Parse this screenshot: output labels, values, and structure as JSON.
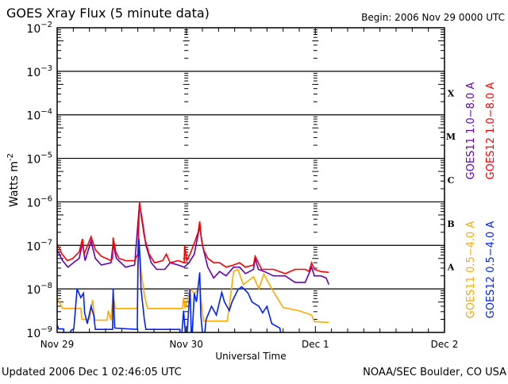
{
  "chart_data": {
    "type": "line",
    "title": "GOES Xray Flux (5 minute data)",
    "begin_label": "Begin:  2006 Nov 29 0000 UTC",
    "xlabel": "Universal Time",
    "ylabel": "Watts m",
    "ylabel_sup": "-2",
    "x_units": "hours since 2006 Nov 29 0000 UTC",
    "xlim": [
      0,
      72
    ],
    "ylim_log10": [
      -9,
      -2
    ],
    "y_scale": "log",
    "grid": true,
    "x_ticks": [
      {
        "value": 0,
        "label": "Nov 29"
      },
      {
        "value": 24,
        "label": "Nov 30"
      },
      {
        "value": 48,
        "label": "Dec 1"
      },
      {
        "value": 72,
        "label": "Dec 2"
      }
    ],
    "y_ticks": [
      {
        "exp": -2,
        "base": "10",
        "sup": "−2"
      },
      {
        "exp": -3,
        "base": "10",
        "sup": "−3"
      },
      {
        "exp": -4,
        "base": "10",
        "sup": "−4"
      },
      {
        "exp": -5,
        "base": "10",
        "sup": "−5"
      },
      {
        "exp": -6,
        "base": "10",
        "sup": "−6"
      },
      {
        "exp": -7,
        "base": "10",
        "sup": "−7"
      },
      {
        "exp": -8,
        "base": "10",
        "sup": "−8"
      },
      {
        "exp": -9,
        "base": "10",
        "sup": "−9"
      }
    ],
    "flare_classes": [
      {
        "label": "X",
        "exp": -4
      },
      {
        "label": "M",
        "exp": -5
      },
      {
        "label": "C",
        "exp": -6
      },
      {
        "label": "B",
        "exp": -7
      },
      {
        "label": "A",
        "exp": -8
      }
    ],
    "series": [
      {
        "name": "GOES11 1.0−8.0 A",
        "color": "#6600bb",
        "legend_pos": "upper-left",
        "points_log10": [
          [
            0,
            -7.1
          ],
          [
            1,
            -7.35
          ],
          [
            2,
            -7.5
          ],
          [
            3,
            -7.4
          ],
          [
            4.1,
            -7.3
          ],
          [
            4.7,
            -6.95
          ],
          [
            5.2,
            -7.35
          ],
          [
            6.3,
            -6.9
          ],
          [
            7.1,
            -7.3
          ],
          [
            8.2,
            -7.45
          ],
          [
            10,
            -7.4
          ],
          [
            10.4,
            -6.95
          ],
          [
            11,
            -7.3
          ],
          [
            12.7,
            -7.5
          ],
          [
            14.4,
            -7.45
          ],
          [
            15.3,
            -6.05
          ],
          [
            15.8,
            -6.4
          ],
          [
            16.5,
            -7.0
          ],
          [
            17.5,
            -7.4
          ],
          [
            18.5,
            -7.55
          ],
          [
            20,
            -7.55
          ],
          [
            21,
            -7.4
          ],
          [
            22.5,
            -7.45
          ],
          [
            23.6,
            -7.5
          ],
          [
            24.5,
            -7.4
          ],
          [
            25.5,
            -7.2
          ],
          [
            26.5,
            -6.55
          ],
          [
            27,
            -7.0
          ],
          [
            28,
            -7.5
          ],
          [
            29.1,
            -7.75
          ],
          [
            30.2,
            -7.6
          ],
          [
            31.4,
            -7.7
          ],
          [
            32.8,
            -7.5
          ],
          [
            33.9,
            -7.5
          ],
          [
            35,
            -7.65
          ],
          [
            36.5,
            -7.55
          ],
          [
            36.8,
            -7.3
          ],
          [
            37.4,
            -7.55
          ],
          [
            38.5,
            -7.6
          ],
          [
            40.2,
            -7.7
          ],
          [
            42.4,
            -7.7
          ],
          [
            44.2,
            -7.85
          ],
          [
            46.1,
            -7.85
          ],
          [
            47.3,
            -7.5
          ],
          [
            47.8,
            -7.7
          ],
          [
            49,
            -7.7
          ],
          [
            50,
            -7.75
          ],
          [
            50.5,
            -7.9
          ]
        ]
      },
      {
        "name": "GOES12 1.0−8.0 A",
        "color": "#ff0000",
        "legend_pos": "upper-right",
        "points_log10": [
          [
            0,
            -6.97
          ],
          [
            0.9,
            -7.2
          ],
          [
            1.9,
            -7.35
          ],
          [
            2.9,
            -7.3
          ],
          [
            4.1,
            -7.15
          ],
          [
            4.7,
            -6.85
          ],
          [
            5.0,
            -7.2
          ],
          [
            6.3,
            -6.8
          ],
          [
            7.1,
            -7.1
          ],
          [
            8.2,
            -7.25
          ],
          [
            10.0,
            -7.35
          ],
          [
            10.3,
            -7.3
          ],
          [
            10.4,
            -6.82
          ],
          [
            10.9,
            -7.15
          ],
          [
            11.5,
            -7.3
          ],
          [
            12.7,
            -7.35
          ],
          [
            14.4,
            -7.35
          ],
          [
            15.0,
            -7.2
          ],
          [
            15.3,
            -6.0
          ],
          [
            15.6,
            -6.3
          ],
          [
            16.2,
            -6.8
          ],
          [
            17.1,
            -7.2
          ],
          [
            18.1,
            -7.4
          ],
          [
            19.6,
            -7.35
          ],
          [
            20.3,
            -7.2
          ],
          [
            21.0,
            -7.4
          ],
          [
            22.5,
            -7.35
          ],
          [
            23.6,
            -7.4
          ],
          [
            23.7,
            -7.0
          ],
          [
            24.1,
            -7.35
          ],
          [
            24.7,
            -7.2
          ],
          [
            25.5,
            -6.95
          ],
          [
            26.2,
            -6.7
          ],
          [
            26.5,
            -6.45
          ],
          [
            26.8,
            -6.85
          ],
          [
            27.2,
            -7.1
          ],
          [
            28.0,
            -7.3
          ],
          [
            29.1,
            -7.4
          ],
          [
            30.2,
            -7.4
          ],
          [
            31.4,
            -7.5
          ],
          [
            32.8,
            -7.45
          ],
          [
            33.9,
            -7.4
          ],
          [
            35.0,
            -7.5
          ],
          [
            36.5,
            -7.45
          ],
          [
            36.8,
            -7.25
          ],
          [
            37.2,
            -7.35
          ],
          [
            38.0,
            -7.55
          ],
          [
            40.2,
            -7.55
          ],
          [
            42.4,
            -7.65
          ],
          [
            44.2,
            -7.55
          ],
          [
            46.1,
            -7.55
          ],
          [
            46.8,
            -7.6
          ],
          [
            47.3,
            -7.4
          ],
          [
            47.8,
            -7.55
          ],
          [
            49.0,
            -7.6
          ],
          [
            50.5,
            -7.62
          ]
        ]
      },
      {
        "name": "GOES11 0.5−4.0 A",
        "color": "#ffaa00",
        "legend_pos": "lower-left",
        "points_log10": [
          [
            0,
            -8.2
          ],
          [
            1,
            -8.45
          ],
          [
            4.4,
            -8.45
          ],
          [
            4.6,
            -8.7
          ],
          [
            6.0,
            -8.7
          ],
          [
            6.6,
            -8.25
          ],
          [
            7.0,
            -8.72
          ],
          [
            9.3,
            -8.72
          ],
          [
            9.5,
            -8.5
          ],
          [
            10.0,
            -8.72
          ],
          [
            10.4,
            -8.1
          ],
          [
            10.8,
            -8.45
          ],
          [
            14.9,
            -8.45
          ],
          [
            15.2,
            -7.0
          ],
          [
            15.6,
            -7.6
          ],
          [
            16.3,
            -8.2
          ],
          [
            16.8,
            -8.45
          ],
          [
            23.3,
            -8.45
          ],
          [
            23.5,
            -8.2
          ],
          [
            23.8,
            -8.45
          ],
          [
            24.7,
            -8.0
          ],
          [
            25.5,
            -8.1
          ],
          [
            26.5,
            -8.0
          ],
          [
            27.2,
            -8.74
          ],
          [
            31.6,
            -8.74
          ],
          [
            32.0,
            -8.4
          ],
          [
            32.8,
            -7.6
          ],
          [
            33.6,
            -7.55
          ],
          [
            34.6,
            -7.9
          ],
          [
            36.5,
            -7.72
          ],
          [
            37.5,
            -8.0
          ],
          [
            38.4,
            -7.66
          ],
          [
            39.9,
            -8.0
          ],
          [
            42.0,
            -8.43
          ],
          [
            44.9,
            -8.5
          ],
          [
            47.3,
            -8.6
          ],
          [
            47.8,
            -8.75
          ],
          [
            50.5,
            -8.77
          ]
        ]
      },
      {
        "name": "GOES12 0.5−4.0 A",
        "color": "#0022ff",
        "legend_pos": "lower-right",
        "points_log10": [
          [
            0,
            -8.83
          ],
          [
            0.3,
            -8.92
          ],
          [
            1.2,
            -8.92
          ],
          [
            1.4,
            -9.3
          ],
          [
            2.6,
            -8.95
          ],
          [
            3.1,
            -8.92
          ],
          [
            3.7,
            -8.0
          ],
          [
            4.4,
            -8.2
          ],
          [
            4.9,
            -8.1
          ],
          [
            5.1,
            -8.55
          ],
          [
            5.6,
            -8.8
          ],
          [
            6.3,
            -8.4
          ],
          [
            6.8,
            -8.6
          ],
          [
            7.1,
            -8.93
          ],
          [
            10.3,
            -8.93
          ],
          [
            10.4,
            -8.0
          ],
          [
            10.7,
            -8.9
          ],
          [
            14.9,
            -8.93
          ],
          [
            15.0,
            -7.5
          ],
          [
            15.2,
            -6.85
          ],
          [
            15.4,
            -7.3
          ],
          [
            15.6,
            -8.0
          ],
          [
            16.2,
            -8.7
          ],
          [
            16.5,
            -8.93
          ],
          [
            22.8,
            -8.93
          ],
          [
            23.0,
            -9.3
          ],
          [
            23.5,
            -8.5
          ],
          [
            24.0,
            -9.3
          ],
          [
            24.7,
            -8.0
          ],
          [
            25.0,
            -9.3
          ],
          [
            25.5,
            -8.1
          ],
          [
            25.9,
            -8.3
          ],
          [
            26.5,
            -7.62
          ],
          [
            26.7,
            -8.6
          ],
          [
            27.2,
            -9.3
          ],
          [
            27.7,
            -8.7
          ],
          [
            28.7,
            -8.4
          ],
          [
            29.6,
            -8.6
          ],
          [
            30.6,
            -8.08
          ],
          [
            31.1,
            -8.3
          ],
          [
            32.0,
            -8.5
          ],
          [
            32.5,
            -8.3
          ],
          [
            33.6,
            -8.02
          ],
          [
            34.3,
            -7.95
          ],
          [
            35.5,
            -8.1
          ],
          [
            36.2,
            -8.3
          ],
          [
            37.5,
            -8.4
          ],
          [
            38.2,
            -8.55
          ],
          [
            39.0,
            -8.4
          ],
          [
            39.9,
            -8.8
          ],
          [
            41.4,
            -8.9
          ],
          [
            41.9,
            -9.3
          ]
        ]
      }
    ]
  },
  "footer": {
    "updated": "Updated 2006 Dec  1 02:46:05 UTC",
    "credit": "NOAA/SEC Boulder, CO USA"
  }
}
